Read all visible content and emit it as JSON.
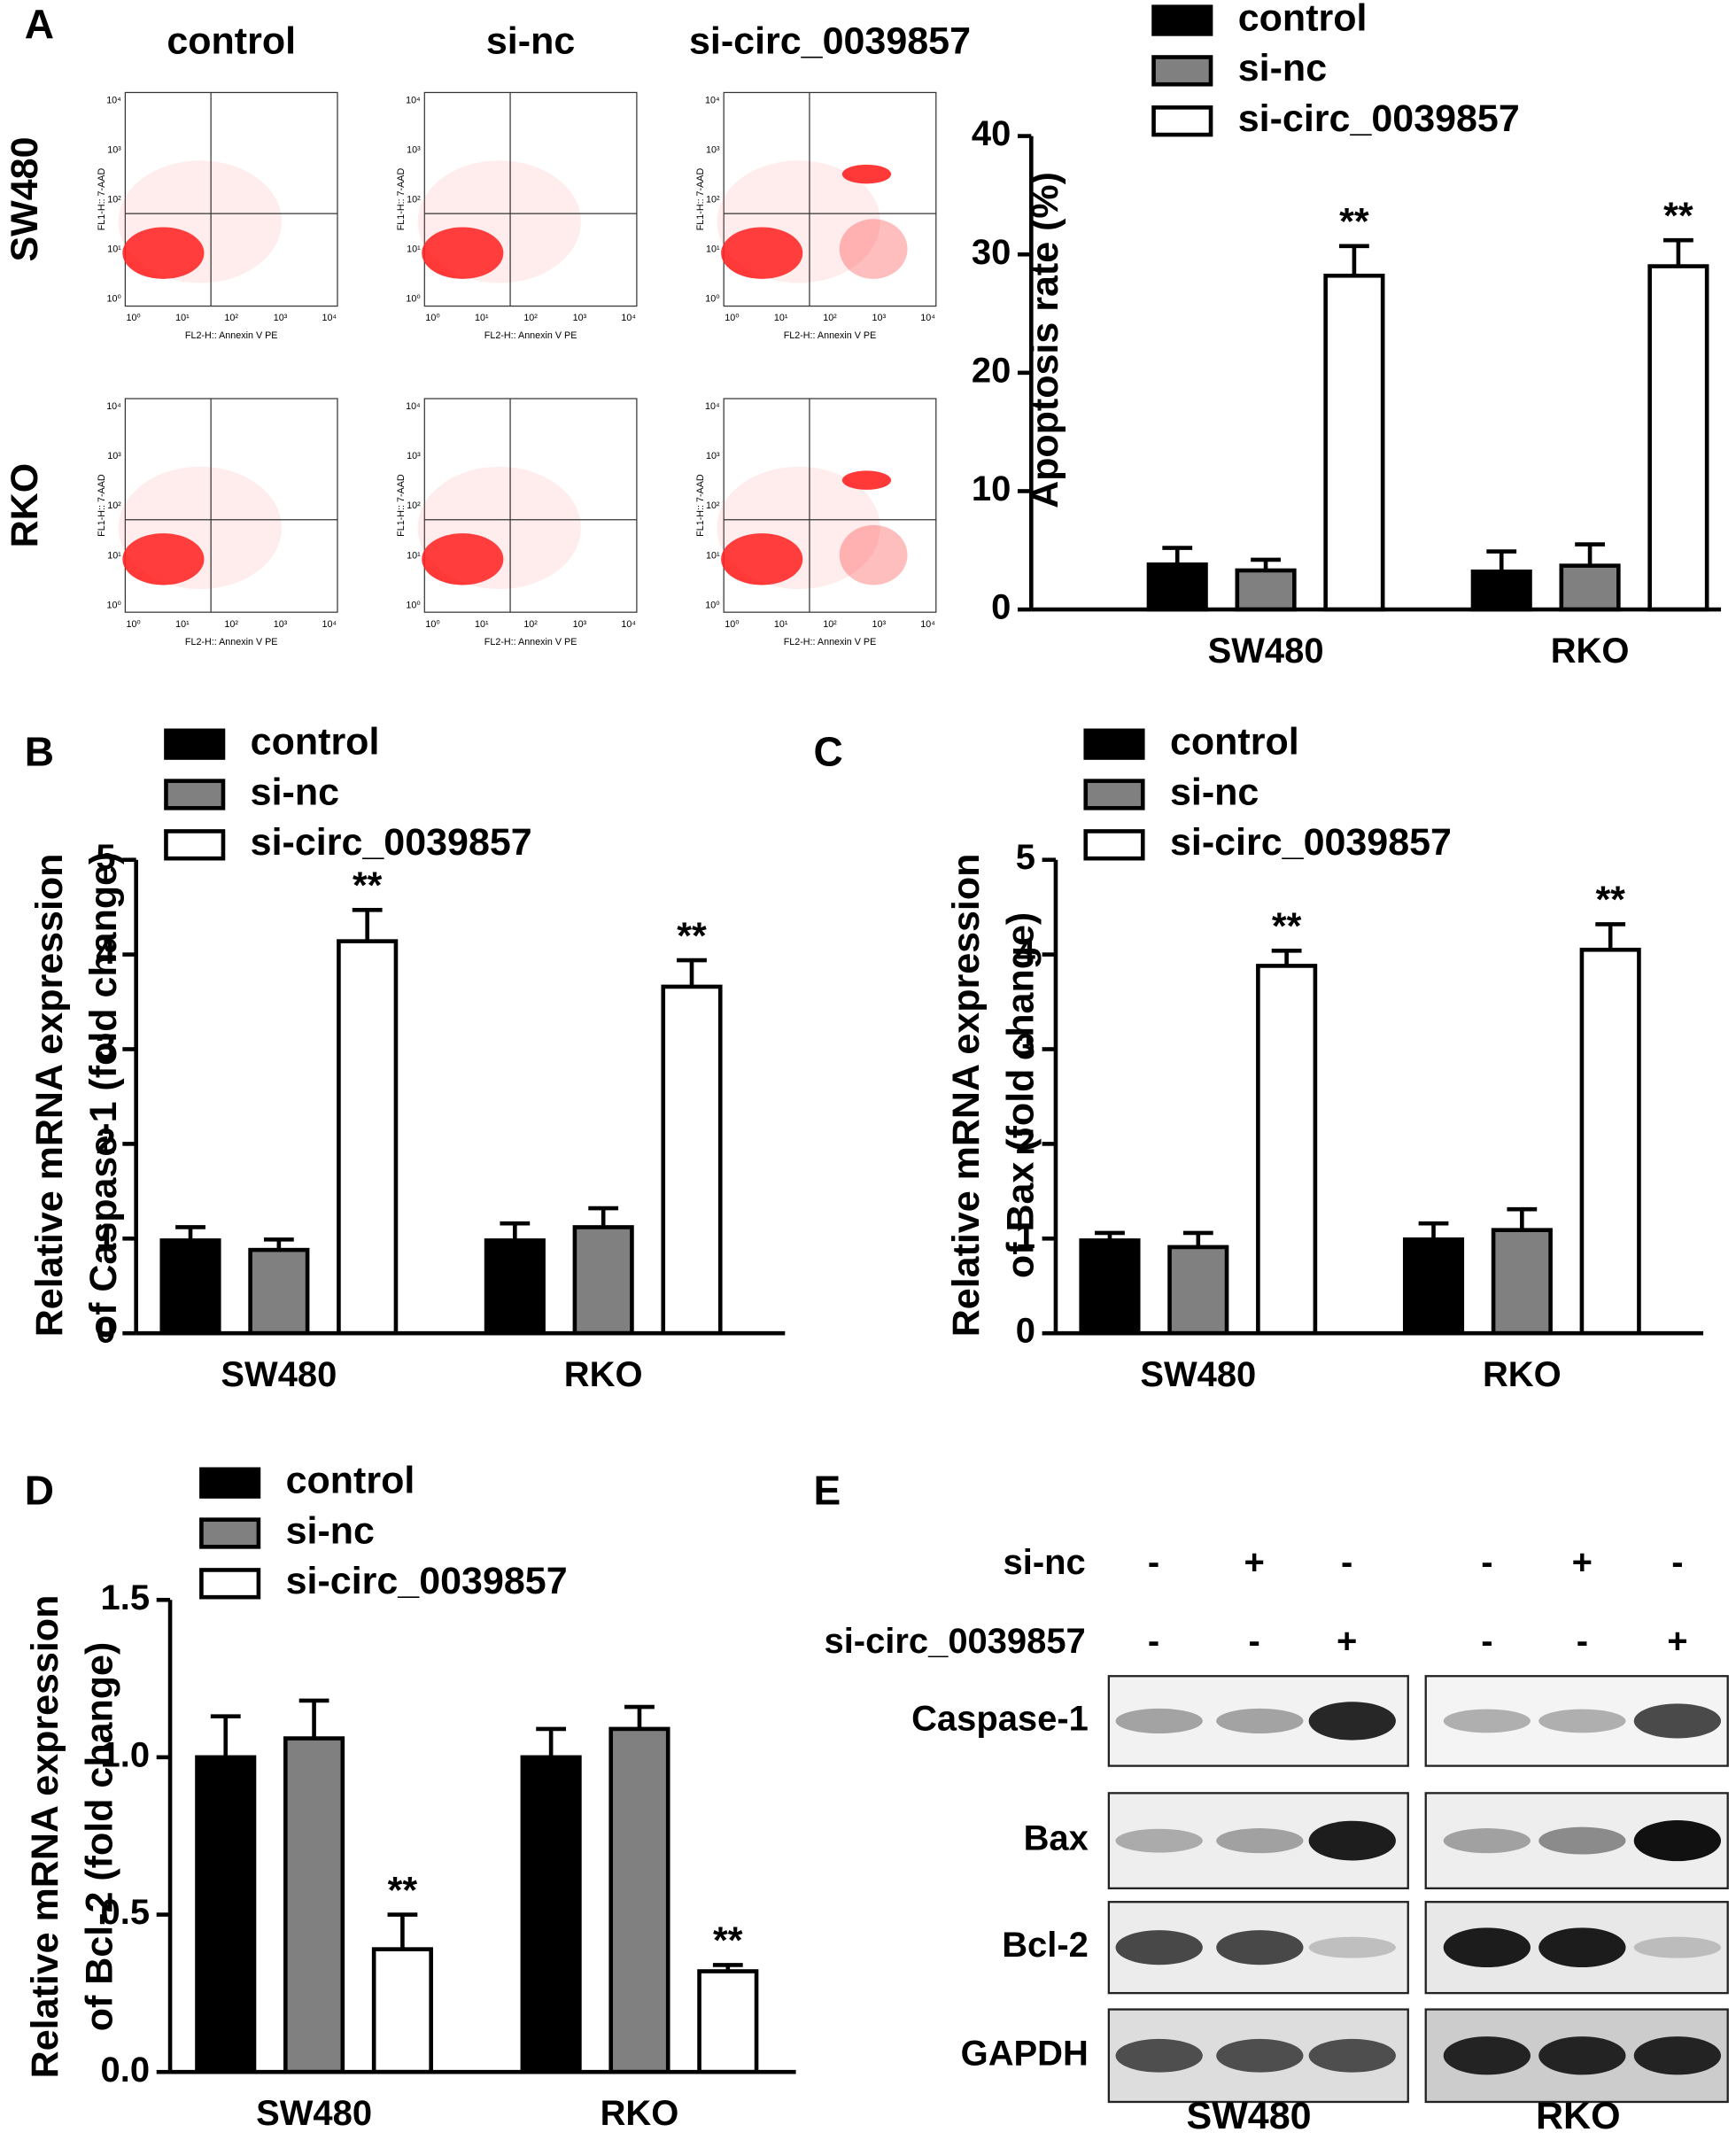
{
  "panel_labels": [
    "A",
    "B",
    "C",
    "D",
    "E"
  ],
  "flow": {
    "columns": [
      "control",
      "si-nc",
      "si-circ_0039857"
    ],
    "rows": [
      "SW480",
      "RKO"
    ],
    "x_label": "FL2-H:: Annexin V PE",
    "y_label": "FL1-H:: 7-AAD",
    "ticks": [
      "10⁰",
      "10¹",
      "10²",
      "10³",
      "10⁴"
    ]
  },
  "chart_data": [
    {
      "type": "bar",
      "ylabel": "Apoptosis rate (%)",
      "categories": [
        "SW480",
        "RKO"
      ],
      "series": [
        {
          "name": "control",
          "color": "#000000",
          "values": [
            3.8,
            3.2
          ],
          "errors": [
            1.4,
            1.7
          ]
        },
        {
          "name": "si-nc",
          "color": "#808080",
          "values": [
            3.3,
            3.7
          ],
          "errors": [
            0.9,
            1.8
          ]
        },
        {
          "name": "si-circ_0039857",
          "color": "#ffffff",
          "values": [
            28.2,
            29.0
          ],
          "errors": [
            2.5,
            2.2
          ],
          "significance": [
            "**",
            "**"
          ]
        }
      ],
      "ylim": [
        0,
        40
      ],
      "yticks": [
        0,
        10,
        20,
        30,
        40
      ]
    },
    {
      "type": "bar",
      "ylabel": [
        "Relative mRNA expression",
        "of Caspase-1 (fold change)"
      ],
      "categories": [
        "SW480",
        "RKO"
      ],
      "series": [
        {
          "name": "control",
          "color": "#000000",
          "values": [
            0.98,
            0.98
          ],
          "errors": [
            0.14,
            0.18
          ]
        },
        {
          "name": "si-nc",
          "color": "#808080",
          "values": [
            0.88,
            1.12
          ],
          "errors": [
            0.11,
            0.2
          ]
        },
        {
          "name": "si-circ_0039857",
          "color": "#ffffff",
          "values": [
            4.14,
            3.66
          ],
          "errors": [
            0.33,
            0.28
          ],
          "significance": [
            "**",
            "**"
          ]
        }
      ],
      "ylim": [
        0,
        5
      ],
      "yticks": [
        0,
        1,
        2,
        3,
        4,
        5
      ]
    },
    {
      "type": "bar",
      "ylabel": [
        "Relative mRNA expression",
        "of Bax (fold change)"
      ],
      "categories": [
        "SW480",
        "RKO"
      ],
      "series": [
        {
          "name": "control",
          "color": "#000000",
          "values": [
            0.98,
            0.99
          ],
          "errors": [
            0.08,
            0.17
          ]
        },
        {
          "name": "si-nc",
          "color": "#808080",
          "values": [
            0.91,
            1.09
          ],
          "errors": [
            0.15,
            0.22
          ]
        },
        {
          "name": "si-circ_0039857",
          "color": "#ffffff",
          "values": [
            3.88,
            4.05
          ],
          "errors": [
            0.16,
            0.27
          ],
          "significance": [
            "**",
            "**"
          ]
        }
      ],
      "ylim": [
        0,
        5
      ],
      "yticks": [
        0,
        1,
        2,
        3,
        4,
        5
      ]
    },
    {
      "type": "bar",
      "ylabel": [
        "Relative mRNA expression",
        "of Bcl-2 (fold change)"
      ],
      "categories": [
        "SW480",
        "RKO"
      ],
      "series": [
        {
          "name": "control",
          "color": "#000000",
          "values": [
            1.0,
            1.0
          ],
          "errors": [
            0.13,
            0.09
          ]
        },
        {
          "name": "si-nc",
          "color": "#808080",
          "values": [
            1.06,
            1.09
          ],
          "errors": [
            0.12,
            0.07
          ]
        },
        {
          "name": "si-circ_0039857",
          "color": "#ffffff",
          "values": [
            0.39,
            0.32
          ],
          "errors": [
            0.11,
            0.02
          ],
          "significance": [
            "**",
            "**"
          ]
        }
      ],
      "ylim": [
        0,
        1.5
      ],
      "yticks": [
        {
          "value": 0,
          "label": "0.0"
        },
        0.5,
        {
          "value": 1,
          "label": "1.0"
        },
        1.5
      ]
    }
  ],
  "blot": {
    "treatments": [
      {
        "label": "si-nc",
        "signs": [
          "-",
          "+",
          "-",
          "-",
          "+",
          "-"
        ]
      },
      {
        "label": "si-circ_0039857",
        "signs": [
          "-",
          "-",
          "+",
          "-",
          "-",
          "+"
        ]
      }
    ],
    "proteins": [
      "Caspase-1",
      "Bax",
      "Bcl-2",
      "GAPDH"
    ],
    "cell_lines": [
      "SW480",
      "RKO"
    ]
  }
}
